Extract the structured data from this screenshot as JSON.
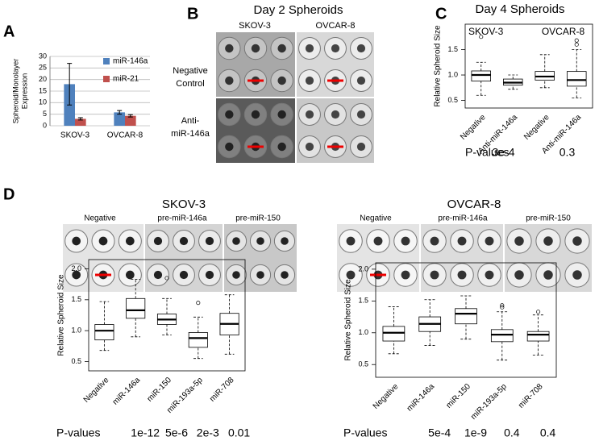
{
  "figure": {
    "panel_labels": [
      "A",
      "B",
      "C",
      "D"
    ],
    "b_title": "Day 2 Spheroids",
    "b_columns": [
      "SKOV-3",
      "OVCAR-8"
    ],
    "b_rows": [
      [
        "Negative",
        "Control"
      ],
      [
        "Anti-",
        "miR-146a"
      ]
    ],
    "c_title": "Day 4 Spheroids",
    "d_headers": [
      "SKOV-3",
      "OVCAR-8"
    ],
    "d_photo_labels": [
      [
        "Negative",
        "pre-miR-146a",
        "pre-miR-150"
      ],
      [
        "Negative",
        "pre-miR-146a",
        "pre-miR-150"
      ]
    ]
  },
  "chart_data": [
    {
      "type": "bar",
      "ylabel": [
        "Spheroid/Monolayer",
        "Expression"
      ],
      "categories": [
        "SKOV-3",
        "OVCAR-8"
      ],
      "series": [
        {
          "name": "miR-146a",
          "color": "#4f81bd",
          "values": [
            18,
            5.8
          ],
          "errors": [
            9,
            0.8
          ]
        },
        {
          "name": "miR-21",
          "color": "#c0504d",
          "values": [
            3,
            4.3
          ],
          "errors": [
            0.5,
            0.5
          ]
        }
      ],
      "ylim": [
        0,
        30
      ],
      "yticks": [
        0,
        5,
        10,
        15,
        20,
        25,
        30
      ],
      "grid": true,
      "legend": "upper right"
    },
    {
      "type": "box",
      "ylabel": "Relative Spheroid Size",
      "categories": [
        "Negative",
        "Anti-miR-146a",
        "Negative",
        "Anti-miR-146a"
      ],
      "groups": [
        "SKOV-3",
        "OVCAR-8"
      ],
      "boxes": [
        {
          "whisker_low": 0.6,
          "q1": 0.88,
          "median": 1.0,
          "q3": 1.08,
          "whisker_high": 1.25,
          "outliers": [
            1.75
          ]
        },
        {
          "whisker_low": 0.72,
          "q1": 0.8,
          "median": 0.85,
          "q3": 0.92,
          "whisker_high": 1.0,
          "outliers": []
        },
        {
          "whisker_low": 0.75,
          "q1": 0.9,
          "median": 0.97,
          "q3": 1.07,
          "whisker_high": 1.4,
          "outliers": []
        },
        {
          "whisker_low": 0.55,
          "q1": 0.78,
          "median": 0.9,
          "q3": 1.07,
          "whisker_high": 1.5,
          "outliers": [
            1.6,
            1.68
          ]
        }
      ],
      "ylim": [
        0.35,
        2.0
      ],
      "yticks": [
        0.5,
        {
          "value": 1,
          "label": "1.0"
        },
        1.5
      ],
      "p_label": "P-values",
      "p_values": [
        "3e-4",
        "0.3"
      ]
    },
    {
      "type": "box",
      "ylabel": "Relative Spheroid Size",
      "categories": [
        "Negative",
        "miR-146a",
        "miR-150",
        "miR-193a-5p",
        "miR-708"
      ],
      "boxes": [
        {
          "whisker_low": 0.68,
          "q1": 0.85,
          "median": 1.0,
          "q3": 1.1,
          "whisker_high": 1.47,
          "outliers": []
        },
        {
          "whisker_low": 0.9,
          "q1": 1.2,
          "median": 1.33,
          "q3": 1.52,
          "whisker_high": 1.83,
          "outliers": []
        },
        {
          "whisker_low": 0.93,
          "q1": 1.1,
          "median": 1.18,
          "q3": 1.27,
          "whisker_high": 1.52,
          "outliers": [
            1.85
          ]
        },
        {
          "whisker_low": 0.55,
          "q1": 0.73,
          "median": 0.88,
          "q3": 0.97,
          "whisker_high": 1.22,
          "outliers": [
            1.45
          ]
        },
        {
          "whisker_low": 0.62,
          "q1": 0.93,
          "median": 1.11,
          "q3": 1.28,
          "whisker_high": 1.58,
          "outliers": []
        }
      ],
      "ylim": [
        0.35,
        2.15
      ],
      "yticks": [
        0.5,
        {
          "value": 1,
          "label": "1.0"
        },
        1.5,
        {
          "value": 2,
          "label": "2.0"
        }
      ],
      "p_label": "P-values",
      "p_values": [
        null,
        "1e-12",
        "5e-6",
        "2e-3",
        "0.01"
      ]
    },
    {
      "type": "box",
      "ylabel": "Relative Spheroid Size",
      "categories": [
        "Negative",
        "miR-146a",
        "miR-150",
        "miR-193a-5p",
        "miR-708"
      ],
      "boxes": [
        {
          "whisker_low": 0.67,
          "q1": 0.87,
          "median": 1.0,
          "q3": 1.1,
          "whisker_high": 1.41,
          "outliers": []
        },
        {
          "whisker_low": 0.8,
          "q1": 1.02,
          "median": 1.14,
          "q3": 1.25,
          "whisker_high": 1.52,
          "outliers": []
        },
        {
          "whisker_low": 0.9,
          "q1": 1.14,
          "median": 1.3,
          "q3": 1.38,
          "whisker_high": 1.58,
          "outliers": []
        },
        {
          "whisker_low": 0.57,
          "q1": 0.86,
          "median": 0.97,
          "q3": 1.05,
          "whisker_high": 1.33,
          "outliers": [
            1.4,
            1.43
          ]
        },
        {
          "whisker_low": 0.65,
          "q1": 0.87,
          "median": 0.97,
          "q3": 1.02,
          "whisker_high": 1.28,
          "outliers": [
            1.33
          ]
        }
      ],
      "ylim": [
        0.3,
        2.1
      ],
      "yticks": [
        0.5,
        {
          "value": 1,
          "label": "1.0"
        },
        1.5,
        {
          "value": 2,
          "label": "2.0"
        }
      ],
      "p_label": "P-values",
      "p_values": [
        null,
        "5e-4",
        "1e-9",
        "0.4",
        "0.4"
      ]
    }
  ]
}
